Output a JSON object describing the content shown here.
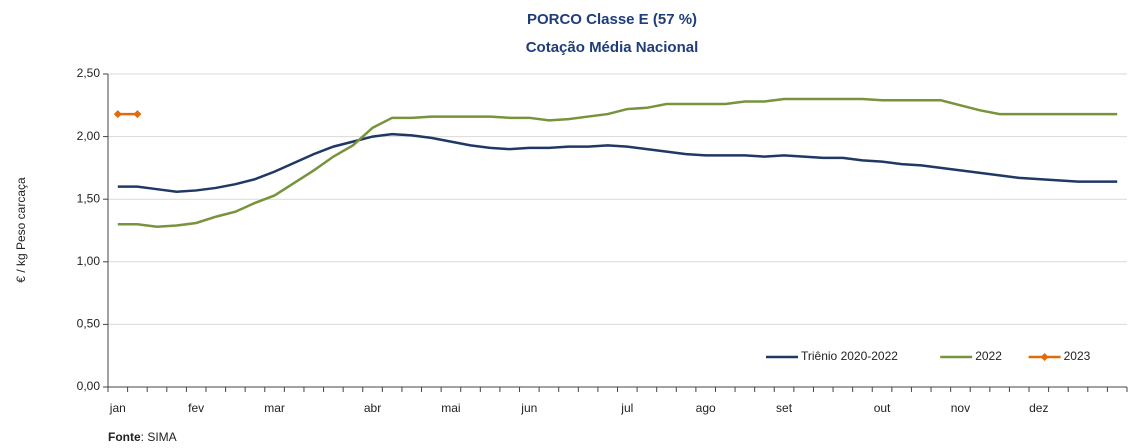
{
  "chart_data": {
    "type": "line",
    "title": "PORCO Classe E (57 %)",
    "subtitle": "Cotação Média Nacional",
    "y_label": "€ / kg Peso carcaça",
    "source_label": "Fonte",
    "source_text": ": SIMA",
    "categories": [
      "jan",
      null,
      null,
      null,
      "fev",
      null,
      null,
      null,
      "mar",
      null,
      null,
      null,
      null,
      "abr",
      null,
      null,
      null,
      "mai",
      null,
      null,
      null,
      "jun",
      null,
      null,
      null,
      null,
      "jul",
      null,
      null,
      null,
      "ago",
      null,
      null,
      null,
      "set",
      null,
      null,
      null,
      null,
      "out",
      null,
      null,
      null,
      "nov",
      null,
      null,
      null,
      "dez",
      null,
      null,
      null,
      null
    ],
    "series": [
      {
        "name": "Triênio 2020-2022",
        "color": "#203864",
        "marker": false,
        "values": [
          1.6,
          1.6,
          1.58,
          1.56,
          1.57,
          1.59,
          1.62,
          1.66,
          1.72,
          1.79,
          1.86,
          1.92,
          1.96,
          2.0,
          2.02,
          2.01,
          1.99,
          1.96,
          1.93,
          1.91,
          1.9,
          1.91,
          1.91,
          1.92,
          1.92,
          1.93,
          1.92,
          1.9,
          1.88,
          1.86,
          1.85,
          1.85,
          1.85,
          1.84,
          1.85,
          1.84,
          1.83,
          1.83,
          1.81,
          1.8,
          1.78,
          1.77,
          1.75,
          1.73,
          1.71,
          1.69,
          1.67,
          1.66,
          1.65,
          1.64,
          1.64,
          1.64
        ]
      },
      {
        "name": "2022",
        "color": "#77933c",
        "marker": false,
        "values": [
          1.3,
          1.3,
          1.28,
          1.29,
          1.31,
          1.36,
          1.4,
          1.47,
          1.53,
          1.63,
          1.73,
          1.84,
          1.93,
          2.07,
          2.15,
          2.15,
          2.16,
          2.16,
          2.16,
          2.16,
          2.15,
          2.15,
          2.13,
          2.14,
          2.16,
          2.18,
          2.22,
          2.23,
          2.26,
          2.26,
          2.26,
          2.26,
          2.28,
          2.28,
          2.3,
          2.3,
          2.3,
          2.3,
          2.3,
          2.29,
          2.29,
          2.29,
          2.29,
          2.25,
          2.21,
          2.18,
          2.18,
          2.18,
          2.18,
          2.18,
          2.18,
          2.18
        ]
      },
      {
        "name": "2023",
        "color": "#e36c09",
        "marker": true,
        "values": [
          2.18,
          2.18,
          null,
          null,
          null,
          null,
          null,
          null,
          null,
          null,
          null,
          null,
          null,
          null,
          null,
          null,
          null,
          null,
          null,
          null,
          null,
          null,
          null,
          null,
          null,
          null,
          null,
          null,
          null,
          null,
          null,
          null,
          null,
          null,
          null,
          null,
          null,
          null,
          null,
          null,
          null,
          null,
          null,
          null,
          null,
          null,
          null,
          null,
          null,
          null,
          null,
          null
        ]
      }
    ],
    "ylim": [
      0,
      2.5
    ],
    "yticks": [
      {
        "value": 0,
        "label": "0,00"
      },
      {
        "value": 0.5,
        "label": "0,50"
      },
      {
        "value": 1,
        "label": "1,00"
      },
      {
        "value": 1.5,
        "label": "1,50"
      },
      {
        "value": 2,
        "label": "2,00"
      },
      {
        "value": 2.5,
        "label": "2,50"
      }
    ],
    "grid": true,
    "legend": "bottom-right"
  }
}
